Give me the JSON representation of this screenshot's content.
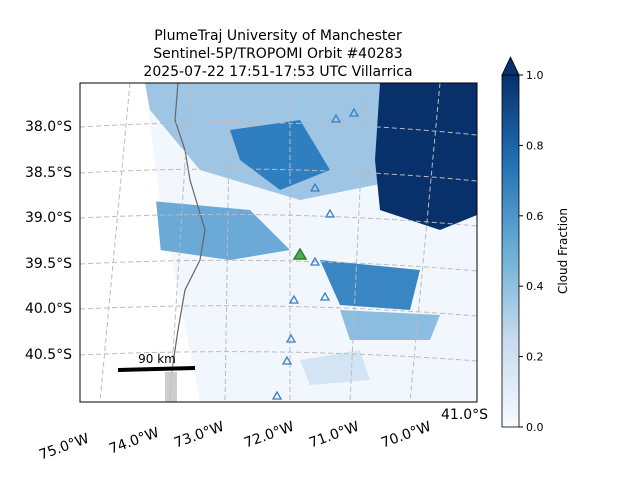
{
  "title_lines": [
    "PlumeTraj    University of Manchester",
    "Sentinel-5P/TROPOMI Orbit #40283",
    "2025-07-22    17:51-17:53 UTC    Villarrica"
  ],
  "map": {
    "lat_labels": [
      "38.0°S",
      "38.5°S",
      "39.0°S",
      "39.5°S",
      "40.0°S",
      "40.5°S",
      "41.0°S"
    ],
    "lon_labels": [
      "75.0°W",
      "74.0°W",
      "73.0°W",
      "72.0°W",
      "71.0°W",
      "70.0°W"
    ],
    "scale_label": "90 km"
  },
  "colorbar": {
    "label": "Cloud Fraction",
    "lim": [
      0,
      1
    ],
    "ticks": [
      {
        "value": 0,
        "label": "0.0"
      },
      {
        "value": 0.2,
        "label": "0.2"
      },
      {
        "value": 0.4,
        "label": "0.4"
      },
      {
        "value": 0.6,
        "label": "0.6"
      },
      {
        "value": 0.8,
        "label": "0.8"
      },
      {
        "value": 1,
        "label": "1.0"
      }
    ],
    "colors": [
      "#f7fbff",
      "#c6dbef",
      "#6baed6",
      "#2171b5",
      "#08306b"
    ]
  }
}
